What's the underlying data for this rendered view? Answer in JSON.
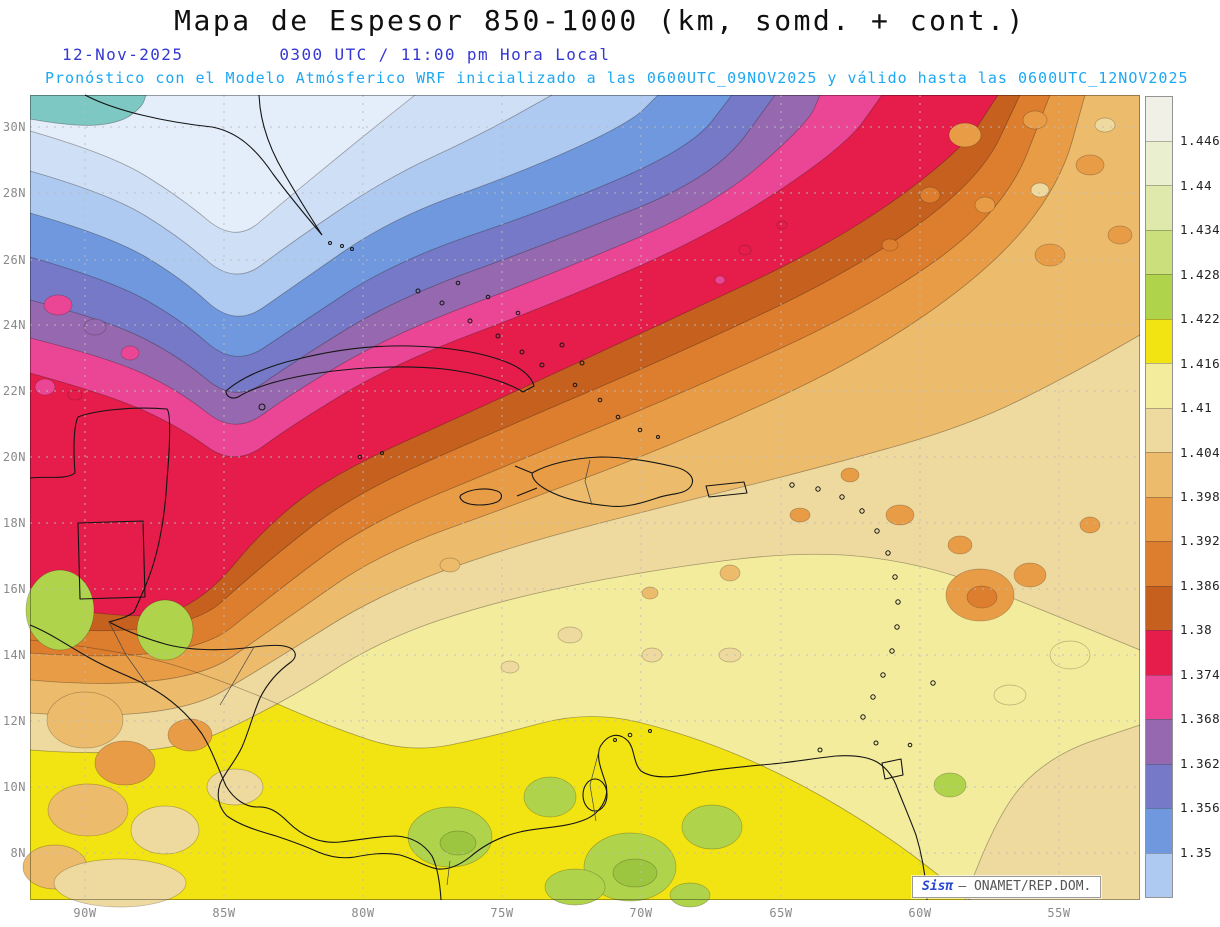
{
  "title": "Mapa de Espesor 850-1000 (km, somd. + cont.)",
  "subtitle": {
    "date": "12-Nov-2025",
    "time": "0300 UTC / 11:00 pm Hora Local",
    "forecast": "Pronóstico con el Modelo Atmósferico WRF inicializado a las 0600UTC_09NOV2025 y válido hasta las  0600UTC_12NOV2025"
  },
  "axes": {
    "lat_labels": [
      "30N",
      "28N",
      "26N",
      "24N",
      "22N",
      "20N",
      "18N",
      "16N",
      "14N",
      "12N",
      "10N",
      "8N"
    ],
    "lon_labels": [
      "90W",
      "85W",
      "80W",
      "75W",
      "70W",
      "65W",
      "60W",
      "55W"
    ]
  },
  "colorbar": {
    "labels": [
      "1.446",
      "1.44",
      "1.434",
      "1.428",
      "1.422",
      "1.416",
      "1.41",
      "1.404",
      "1.398",
      "1.392",
      "1.386",
      "1.38",
      "1.374",
      "1.368",
      "1.362",
      "1.356",
      "1.35"
    ],
    "colors": [
      "#f1f0e6",
      "#e9efcf",
      "#dfe9ac",
      "#cbe07d",
      "#b0d34c",
      "#f2e413",
      "#f3ec9d",
      "#eeda9f",
      "#ecbb6b",
      "#e89c46",
      "#dc7e2e",
      "#c6601e",
      "#e61c4b",
      "#eb4695",
      "#9568af",
      "#7579c7",
      "#7098de",
      "#aecaf0"
    ]
  },
  "watermark": {
    "brand": "Sisπ",
    "suffix": "– ONAMET/REP.DOM."
  },
  "chart_data": {
    "type": "heatmap",
    "field": "850-1000 thickness",
    "units": "km",
    "levels": [
      1.35,
      1.356,
      1.362,
      1.368,
      1.374,
      1.38,
      1.386,
      1.392,
      1.398,
      1.404,
      1.41,
      1.416,
      1.422,
      1.428,
      1.434,
      1.44,
      1.446
    ],
    "lat_range": [
      "8N",
      "30N"
    ],
    "lon_range": [
      "90W",
      "55W"
    ]
  }
}
